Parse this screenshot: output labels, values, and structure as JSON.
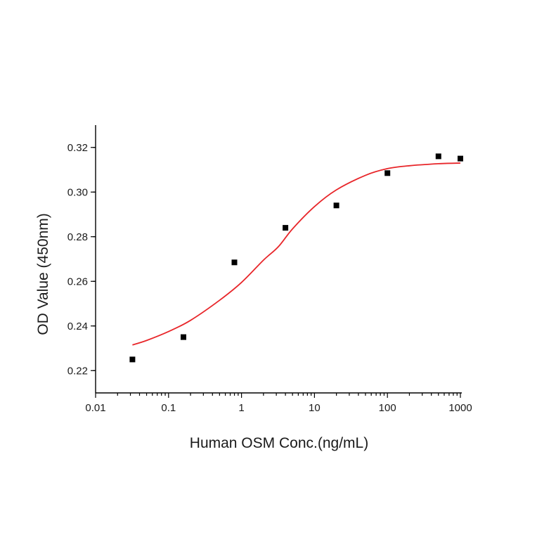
{
  "chart_data": {
    "type": "scatter",
    "title": "",
    "xlabel": "Human OSM Conc.(ng/mL)",
    "ylabel": "OD Value (450nm)",
    "x_scale": "log",
    "xlim": [
      0.01,
      1000
    ],
    "ylim": [
      0.21,
      0.33
    ],
    "x_tick_labels": [
      "0.01",
      "0.1",
      "1",
      "10",
      "100",
      "1000"
    ],
    "y_tick_labels": [
      "0.22",
      "0.24",
      "0.26",
      "0.28",
      "0.30",
      "0.32"
    ],
    "grid": false,
    "legend": "none",
    "series": [
      {
        "type": "scatter",
        "marker": "square",
        "color": "#000000",
        "x": [
          0.032,
          0.16,
          0.8,
          4,
          20,
          100,
          500,
          1000
        ],
        "y": [
          0.225,
          0.235,
          0.2685,
          0.284,
          0.294,
          0.3085,
          0.316,
          0.315
        ]
      },
      {
        "type": "line",
        "color": "#e8262a",
        "x": [
          0.032,
          0.05,
          0.1,
          0.2,
          0.5,
          1,
          2,
          3.2,
          5,
          10,
          20,
          50,
          100,
          200,
          500,
          1000
        ],
        "y": [
          0.2315,
          0.2335,
          0.2375,
          0.2425,
          0.2515,
          0.2595,
          0.2695,
          0.2755,
          0.2835,
          0.2935,
          0.301,
          0.3075,
          0.3105,
          0.3118,
          0.3127,
          0.313
        ]
      }
    ]
  }
}
